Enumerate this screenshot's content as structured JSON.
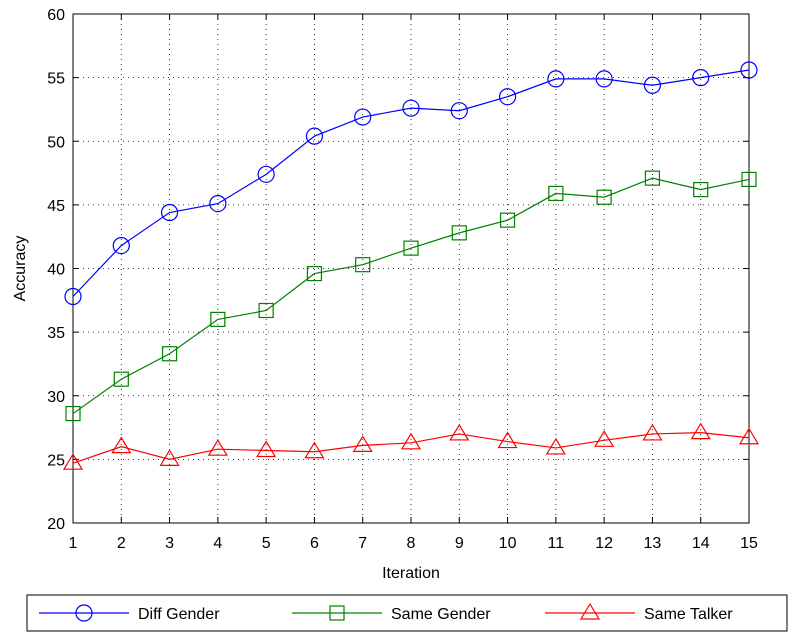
{
  "chart_data": {
    "type": "line",
    "xlabel": "Iteration",
    "ylabel": "Accuracy",
    "xlim": [
      1,
      15
    ],
    "ylim": [
      20,
      60
    ],
    "x": [
      1,
      2,
      3,
      4,
      5,
      6,
      7,
      8,
      9,
      10,
      11,
      12,
      13,
      14,
      15
    ],
    "x_ticks": [
      "1",
      "2",
      "3",
      "4",
      "5",
      "6",
      "7",
      "8",
      "9",
      "10",
      "11",
      "12",
      "13",
      "14",
      "15"
    ],
    "y_ticks": [
      "20",
      "25",
      "30",
      "35",
      "40",
      "45",
      "50",
      "55",
      "60"
    ],
    "grid": true,
    "legend_position": "bottom",
    "series": [
      {
        "name": "Diff Gender",
        "color": "#0000ff",
        "marker": "circle",
        "values": [
          37.8,
          41.8,
          44.4,
          45.1,
          47.4,
          50.4,
          51.9,
          52.6,
          52.4,
          53.5,
          54.9,
          54.9,
          54.4,
          55.0,
          55.6
        ]
      },
      {
        "name": "Same Gender",
        "color": "#008000",
        "marker": "square",
        "values": [
          28.6,
          31.3,
          33.3,
          36.0,
          36.7,
          39.6,
          40.3,
          41.6,
          42.8,
          43.8,
          45.9,
          45.6,
          47.1,
          46.2,
          47.0
        ]
      },
      {
        "name": "Same Talker",
        "color": "#ff0000",
        "marker": "triangle",
        "values": [
          24.7,
          26.0,
          25.0,
          25.8,
          25.7,
          25.6,
          26.1,
          26.3,
          27.0,
          26.4,
          25.9,
          26.5,
          27.0,
          27.1,
          26.7
        ]
      }
    ]
  }
}
